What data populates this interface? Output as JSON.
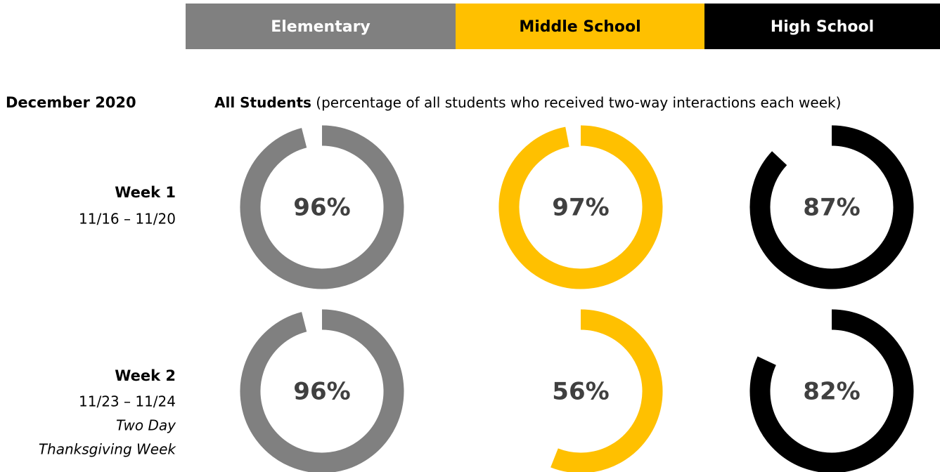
{
  "columns": [
    {
      "label": "Elementary",
      "color": "#808080",
      "text_color": "#ffffff"
    },
    {
      "label": "Middle School",
      "color": "#ffc000",
      "text_color": "#000000"
    },
    {
      "label": "High School",
      "color": "#000000",
      "text_color": "#ffffff"
    }
  ],
  "header": {
    "period": "December 2020",
    "subtitle_bold": "All Students",
    "subtitle_rest": " (percentage of all students who received two-way interactions each week)"
  },
  "rows": [
    {
      "week": "Week 1",
      "lines": [
        "11/16 – 11/20"
      ]
    },
    {
      "week": "Week 2",
      "lines": [
        "11/23 – 11/24",
        "Two Day",
        "Thanksgiving Week"
      ]
    }
  ],
  "chart_data": [
    {
      "type": "donut",
      "values": [
        96
      ],
      "value_labels": [
        "96%"
      ],
      "color": "#808080"
    },
    {
      "type": "donut",
      "values": [
        97
      ],
      "value_labels": [
        "97%"
      ],
      "color": "#ffc000"
    },
    {
      "type": "donut",
      "values": [
        87
      ],
      "value_labels": [
        "87%"
      ],
      "color": "#000000"
    },
    {
      "type": "donut",
      "values": [
        96
      ],
      "value_labels": [
        "96%"
      ],
      "color": "#808080"
    },
    {
      "type": "donut",
      "values": [
        56
      ],
      "value_labels": [
        "56%"
      ],
      "color": "#ffc000"
    },
    {
      "type": "donut",
      "values": [
        82
      ],
      "value_labels": [
        "82%"
      ],
      "color": "#000000"
    }
  ]
}
